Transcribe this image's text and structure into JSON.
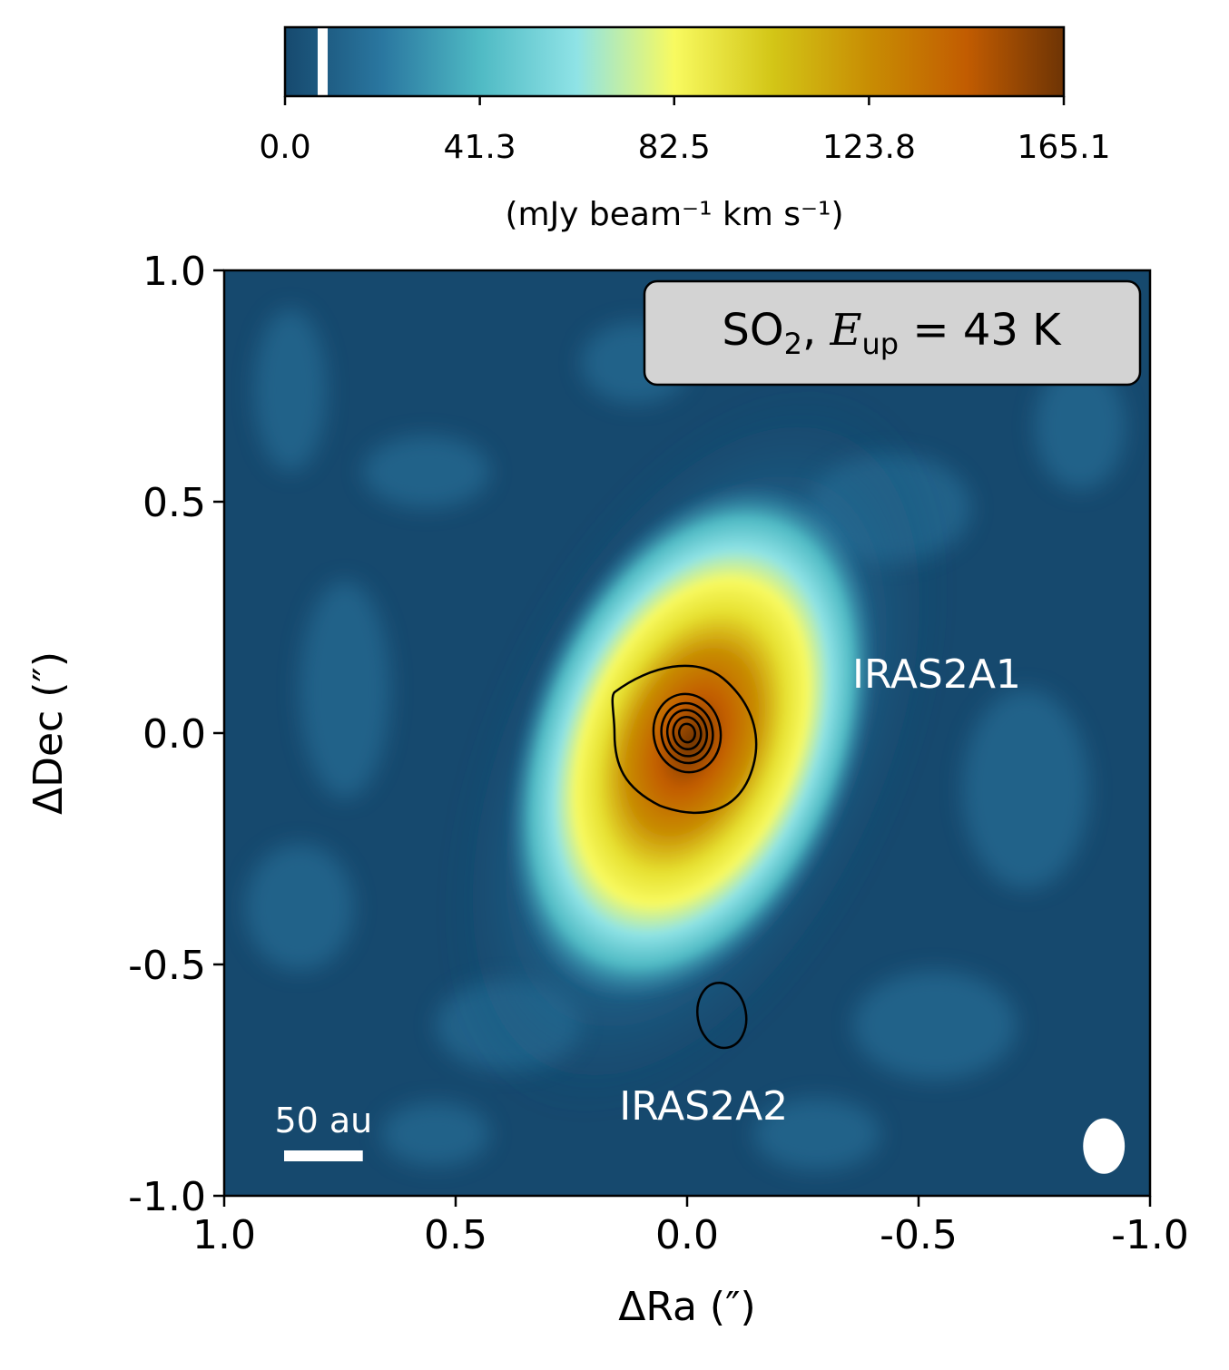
{
  "chart_data": {
    "type": "heatmap",
    "title": "",
    "xlabel": "ΔRa (″)",
    "ylabel": "ΔDec (″)",
    "xlim": [
      1.0,
      -1.0
    ],
    "ylim": [
      -1.0,
      1.0
    ],
    "x_ticks": [
      1.0,
      0.5,
      0.0,
      -0.5,
      -1.0
    ],
    "x_tick_labels": [
      "1.0",
      "0.5",
      "0.0",
      "-0.5",
      "-1.0"
    ],
    "y_ticks": [
      1.0,
      0.5,
      0.0,
      -0.5,
      -1.0
    ],
    "y_tick_labels": [
      "1.0",
      "0.5",
      "0.0",
      "-0.5",
      "-1.0"
    ],
    "colorbar": {
      "label": "(mJy beam⁻¹ km s⁻¹)",
      "vmin": 0.0,
      "vmax": 165.1,
      "ticks": [
        0.0,
        41.3,
        82.5,
        123.8,
        165.1
      ],
      "tick_labels": [
        "0.0",
        "41.3",
        "82.5",
        "123.8",
        "165.1"
      ],
      "marker_value": 5.0,
      "colors": [
        "#16496e",
        "#2a77a0",
        "#4fbac4",
        "#8fe3e6",
        "#f8fa60",
        "#d3c617",
        "#c88d03",
        "#c25c01",
        "#6e3405"
      ]
    },
    "emission_peak": {
      "ra": 0.0,
      "dec": 0.0,
      "value": 165.1
    },
    "annotation": "SO₂, Eup = 43 K",
    "sources": [
      {
        "name": "IRAS2A1",
        "ra": 0.0,
        "dec": 0.0
      },
      {
        "name": "IRAS2A2",
        "ra": -0.075,
        "dec": -0.61
      }
    ],
    "source_labels": [
      "IRAS2A1",
      "IRAS2A2"
    ],
    "continuum_contours": {
      "center_A1": [
        0.0,
        0.0
      ],
      "outer_radius": 0.16,
      "inner_radii": [
        0.085,
        0.065,
        0.05,
        0.035,
        0.02
      ],
      "center_A2": [
        -0.075,
        -0.61
      ],
      "A2_radius": 0.06
    },
    "scale_bar": {
      "label": "50 au",
      "length_arcsec": 0.17
    },
    "beam": {
      "ra": -0.92,
      "dec": -0.92,
      "major_arcsec": 0.12,
      "minor_arcsec": 0.09
    },
    "grid": false
  }
}
